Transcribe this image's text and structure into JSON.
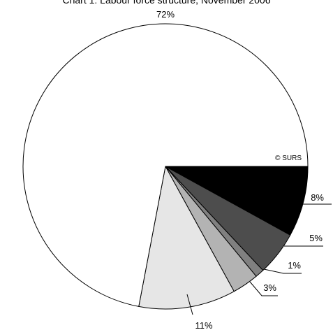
{
  "chart_data": {
    "type": "pie",
    "title": "Chart 1: Labour force structure, November 2006",
    "source_note": "© SURS",
    "slices": [
      {
        "label": "8%",
        "value": 8,
        "color": "#000000"
      },
      {
        "label": "5%",
        "value": 5,
        "color": "#4d4d4d"
      },
      {
        "label": "1%",
        "value": 1,
        "color": "#808080"
      },
      {
        "label": "3%",
        "value": 3,
        "color": "#b3b3b3"
      },
      {
        "label": "11%",
        "value": 11,
        "color": "#e6e6e6"
      },
      {
        "label": "72%",
        "value": 72,
        "color": "#ffffff"
      }
    ],
    "start_direction": "east",
    "direction": "clockwise",
    "legend": "none"
  }
}
